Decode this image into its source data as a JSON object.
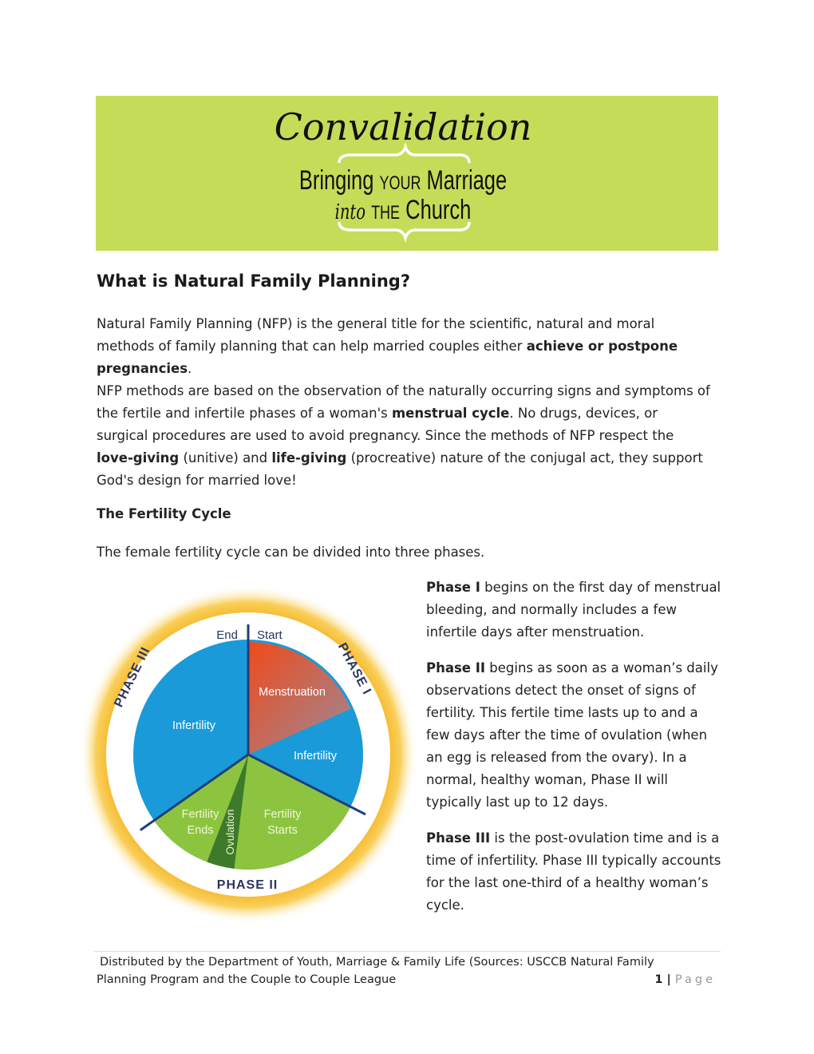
{
  "banner": {
    "title": "Convalidation",
    "line1_a": "Bringing",
    "line1_b": "YOUR",
    "line1_c": "Marriage",
    "line2_a": "into",
    "line2_b": "THE",
    "line2_c": "Church",
    "color": "#c5dc58"
  },
  "heading": "What is Natural Family Planning?",
  "para1": {
    "a": " Natural Family Planning (NFP) is the general title for the scientific, natural and moral methods of family planning that can help married couples either ",
    "b": "achieve or postpone pregnancies",
    "c": "."
  },
  "para2": {
    "a": "NFP methods are based on the observation of the naturally occurring signs and symptoms of the fertile and infertile phases of a woman's ",
    "b": "menstrual cycle",
    "c": ". No drugs, devices, or surgical procedures are used to avoid pregnancy. Since the methods of NFP respect the ",
    "d": "love-giving",
    "e": " (unitive) and ",
    "f": "life-giving",
    "g": " (procreative) nature of the conjugal act, they support God's design for married love!"
  },
  "subheading": "The Fertility Cycle",
  "intro": "The female fertility cycle can be divided into three phases.",
  "phases": [
    {
      "label": "Phase I",
      "text": " begins on the first day of menstrual bleeding, and normally includes a few infertile days after menstruation."
    },
    {
      "label": "Phase II",
      "text": " begins as soon as a woman’s daily observations detect the onset of signs of fertility. This fertile time lasts up to and a few days after the time of ovulation (when an egg is released from the ovary). In a normal, healthy woman, Phase II will typically last up to 12 days."
    },
    {
      "label": "Phase III",
      "text": " is the post-ovulation time and is a time of infertility. Phase III typically accounts for the last one-third of a healthy woman’s cycle."
    }
  ],
  "diagram": {
    "end": "End",
    "start": "Start",
    "phase1": "PHASE I",
    "phase2": "PHASE II",
    "phase3": "PHASE III",
    "menstruation": "Menstruation",
    "infertility1": "Infertility",
    "infertility3": "Infertility",
    "fertility_starts_1": "Fertility",
    "fertility_starts_2": "Starts",
    "fertility_ends_1": "Fertility",
    "fertility_ends_2": "Ends",
    "ovulation": "Ovulation",
    "colors": {
      "infertile": "#1a9ad9",
      "menstruation": "#ee5a2a",
      "fertile": "#8cc43f",
      "ovulation": "#3d7a2a",
      "ring": "#f6b72a"
    }
  },
  "footer": {
    "line1": "Distributed by the Department of Youth, Marriage & Family Life (Sources: USCCB Natural Family",
    "line2": "Planning Program and the Couple to Couple League",
    "page_num": "1",
    "sep": " | ",
    "page_word": "Page"
  }
}
